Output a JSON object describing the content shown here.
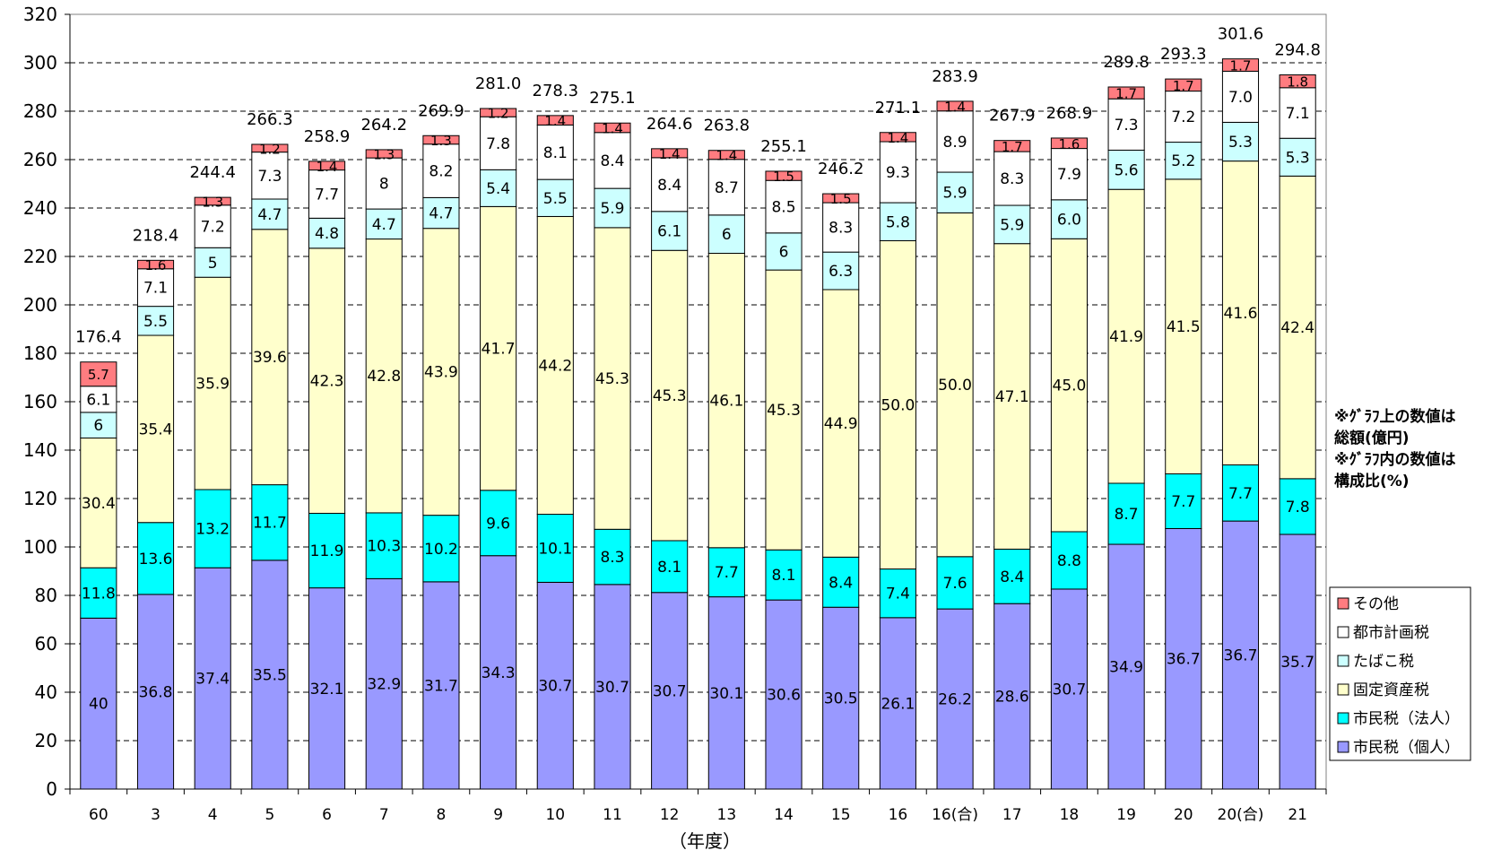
{
  "chart_data": {
    "type": "bar",
    "stacked": true,
    "title": "",
    "xlabel": "（年度）",
    "ylabel": "",
    "ylim": [
      0,
      320
    ],
    "yticks": [
      0,
      20,
      40,
      60,
      80,
      100,
      120,
      140,
      160,
      180,
      200,
      220,
      240,
      260,
      280,
      300,
      320
    ],
    "grid": "dashed horizontal",
    "legend_position": "right",
    "categories": [
      "60",
      "3",
      "4",
      "5",
      "6",
      "7",
      "8",
      "9",
      "10",
      "11",
      "12",
      "13",
      "14",
      "15",
      "16",
      "16(合)",
      "17",
      "18",
      "19",
      "20",
      "20(合)",
      "21"
    ],
    "totals": [
      176.4,
      218.4,
      244.4,
      266.3,
      258.9,
      264.2,
      269.9,
      281.0,
      278.3,
      275.1,
      264.6,
      263.8,
      255.1,
      246.2,
      271.1,
      283.9,
      267.9,
      268.9,
      289.8,
      293.3,
      301.6,
      294.8
    ],
    "total_labels": [
      "176.4",
      "218.4",
      "244.4",
      "266.3",
      "258.9",
      "264.2",
      "269.9",
      "281.0",
      "278.3",
      "275.1",
      "264.6",
      "263.8",
      "255.1",
      "246.2",
      "271.1",
      "283.9",
      "267.9",
      "268.9",
      "289.8",
      "293.3",
      "301.6",
      "294.8"
    ],
    "series": [
      {
        "name": "市民税（個人）",
        "color": "#9999ff",
        "values": [
          70.6,
          80.4,
          91.4,
          94.5,
          83.1,
          86.9,
          85.6,
          96.4,
          85.4,
          84.5,
          81.2,
          79.4,
          78.1,
          75.1,
          70.8,
          74.4,
          76.6,
          82.6,
          101.1,
          107.6,
          110.7,
          105.2
        ],
        "labels": [
          "40",
          "36.8",
          "37.4",
          "35.5",
          "32.1",
          "32.9",
          "31.7",
          "34.3",
          "30.7",
          "30.7",
          "30.7",
          "30.1",
          "30.6",
          "30.5",
          "26.1",
          "26.2",
          "28.6",
          "30.7",
          "34.9",
          "36.7",
          "36.7",
          "35.7"
        ]
      },
      {
        "name": "市民税（法人）",
        "color": "#00ffff",
        "values": [
          20.8,
          29.7,
          32.3,
          31.2,
          30.8,
          27.2,
          27.5,
          27.0,
          28.1,
          22.8,
          21.4,
          20.3,
          20.7,
          20.7,
          20.1,
          21.6,
          22.5,
          23.7,
          25.2,
          22.6,
          23.2,
          23.0
        ],
        "labels": [
          "11.8",
          "13.6",
          "13.2",
          "11.7",
          "11.9",
          "10.3",
          "10.2",
          "9.6",
          "10.1",
          "8.3",
          "8.1",
          "7.7",
          "8.1",
          "8.4",
          "7.4",
          "7.6",
          "8.4",
          "8.8",
          "8.7",
          "7.7",
          "7.7",
          "7.8"
        ]
      },
      {
        "name": "固定資産税",
        "color": "#ffffcc",
        "values": [
          53.6,
          77.3,
          87.7,
          105.5,
          109.5,
          113.1,
          118.5,
          117.2,
          123.0,
          124.6,
          119.9,
          121.6,
          115.6,
          110.5,
          135.6,
          142.0,
          126.2,
          121.0,
          121.4,
          121.7,
          125.5,
          125.0
        ],
        "labels": [
          "30.4",
          "35.4",
          "35.9",
          "39.6",
          "42.3",
          "42.8",
          "43.9",
          "41.7",
          "44.2",
          "45.3",
          "45.3",
          "46.1",
          "45.3",
          "44.9",
          "50.0",
          "50.0",
          "47.1",
          "45.0",
          "41.9",
          "41.5",
          "41.6",
          "42.4"
        ]
      },
      {
        "name": "たばこ税",
        "color": "#ccffff",
        "values": [
          10.6,
          12.0,
          12.2,
          12.5,
          12.4,
          12.4,
          12.7,
          15.2,
          15.3,
          16.2,
          16.1,
          15.8,
          15.3,
          15.5,
          15.7,
          16.8,
          15.8,
          16.1,
          16.2,
          15.3,
          16.0,
          15.6
        ],
        "labels": [
          "6",
          "5.5",
          "5",
          "4.7",
          "4.8",
          "4.7",
          "4.7",
          "5.4",
          "5.5",
          "5.9",
          "6.1",
          "6",
          "6",
          "6.3",
          "5.8",
          "5.9",
          "5.9",
          "6.0",
          "5.6",
          "5.2",
          "5.3",
          "5.3"
        ]
      },
      {
        "name": "都市計画税",
        "color": "#ffffff",
        "values": [
          10.8,
          15.5,
          17.6,
          19.4,
          19.9,
          21.1,
          22.1,
          21.9,
          22.5,
          23.1,
          22.2,
          23.0,
          21.7,
          20.4,
          25.2,
          25.3,
          22.2,
          21.2,
          21.2,
          21.1,
          21.1,
          20.9
        ],
        "labels": [
          "6.1",
          "7.1",
          "7.2",
          "7.3",
          "7.7",
          "8",
          "8.2",
          "7.8",
          "8.1",
          "8.4",
          "8.4",
          "8.7",
          "8.5",
          "8.3",
          "9.3",
          "8.9",
          "8.3",
          "7.9",
          "7.3",
          "7.2",
          "7.0",
          "7.1"
        ]
      },
      {
        "name": "その他",
        "color": "#ff7c80",
        "values": [
          10.0,
          3.5,
          3.2,
          3.2,
          3.6,
          3.4,
          3.5,
          3.4,
          3.9,
          3.9,
          3.7,
          3.7,
          3.8,
          3.7,
          3.8,
          4.0,
          4.6,
          4.3,
          4.9,
          5.0,
          5.1,
          5.3
        ],
        "labels": [
          "5.7",
          "1.6",
          "1.3",
          "1.2",
          "1.4",
          "1.3",
          "1.3",
          "1.2",
          "1.4",
          "1.4",
          "1.4",
          "1.4",
          "1.5",
          "1.5",
          "1.4",
          "1.4",
          "1.7",
          "1.6",
          "1.7",
          "1.7",
          "1.7",
          "1.8"
        ]
      }
    ],
    "annotations": [
      "※ｸﾞﾗﾌ上の数値は",
      "総額(億円)",
      "※ｸﾞﾗﾌ内の数値は",
      "構成比(%)"
    ]
  }
}
